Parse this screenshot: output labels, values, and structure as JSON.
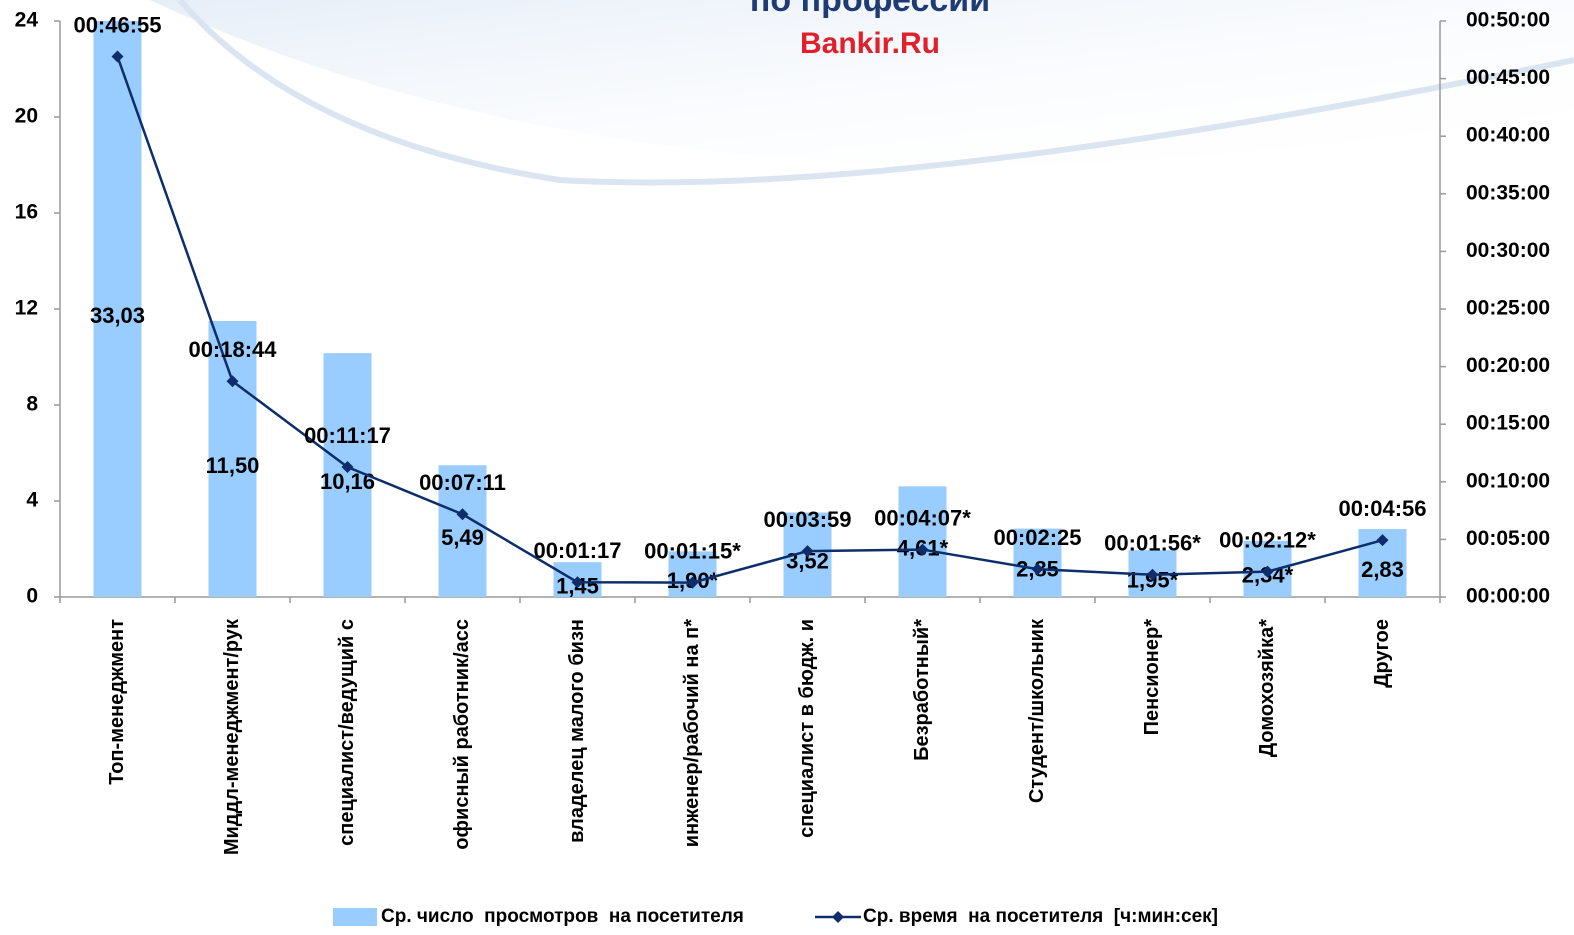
{
  "chart_data": {
    "type": "combo",
    "title": "по профессии",
    "subtitle": "Bankir.Ru",
    "categories": [
      "Топ-менеджмент",
      "Миддл-менеджмент/рук",
      "специалист/ведущий с",
      "офисный работник/асс",
      "владелец малого бизн",
      "инженер/рабочий на п*",
      "специалист в бюдж. и",
      "Безработный*",
      "Студент/школьник",
      "Пенсионер*",
      "Домохозяйка*",
      "Другое"
    ],
    "series": [
      {
        "name": "Ср. число  просмотров  на посетителя",
        "type": "bar",
        "color": "#99ccff",
        "axis": "y",
        "values": [
          33.03,
          11.5,
          10.16,
          5.49,
          1.45,
          1.9,
          3.52,
          4.61,
          2.85,
          1.95,
          2.34,
          2.83
        ],
        "value_labels": [
          "33,03",
          "11,50",
          "10,16",
          "5,49",
          "1,45",
          "1,90*",
          "3,52",
          "4,61*",
          "2,85",
          "1,95*",
          "2,34*",
          "2,83"
        ]
      },
      {
        "name": "Ср. время  на посетителя  [ч:мин:сек]",
        "type": "line",
        "color": "#0d2d6b",
        "axis": "y2",
        "values": [
          2815,
          1124,
          677,
          431,
          77,
          75,
          239,
          247,
          145,
          116,
          132,
          296
        ],
        "value_labels": [
          "00:46:55",
          "00:18:44",
          "00:11:17",
          "00:07:11",
          "00:01:17",
          "00:01:15*",
          "00:03:59",
          "00:04:07*",
          "00:02:25",
          "00:01:56*",
          "00:02:12*",
          "00:04:56"
        ]
      }
    ],
    "ylim": [
      0,
      24
    ],
    "yticks": [
      0,
      4,
      8,
      12,
      16,
      20,
      24
    ],
    "y2lim": [
      0,
      3000
    ],
    "y2ticks": [
      {
        "value": 0,
        "label": "00:00:00"
      },
      {
        "value": 300,
        "label": "00:05:00"
      },
      {
        "value": 600,
        "label": "00:10:00"
      },
      {
        "value": 900,
        "label": "00:15:00"
      },
      {
        "value": 1200,
        "label": "00:20:00"
      },
      {
        "value": 1500,
        "label": "00:25:00"
      },
      {
        "value": 1800,
        "label": "00:30:00"
      },
      {
        "value": 2100,
        "label": "00:35:00"
      },
      {
        "value": 2400,
        "label": "00:40:00"
      },
      {
        "value": 2700,
        "label": "00:45:00"
      },
      {
        "value": 3000,
        "label": "00:50:00"
      }
    ],
    "legend": "bottom"
  }
}
